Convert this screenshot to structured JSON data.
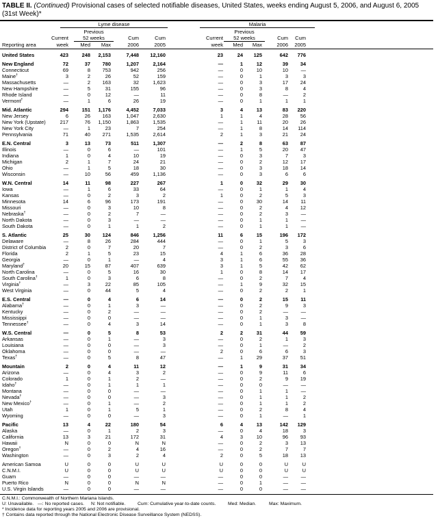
{
  "title": {
    "label": "TABLE II.",
    "continued": "(Continued)",
    "text": "Provisional cases of selected notifiable diseases, United States, weeks ending August 5, 2006, and August 6, 2005",
    "week": "(31st Week)*"
  },
  "header": {
    "reporting_area": "Reporting area",
    "diseases": [
      "Lyme disease",
      "Malaria"
    ],
    "previous": "Previous",
    "weeks52": "52 weeks",
    "current": "Current",
    "week": "week",
    "med": "Med",
    "max": "Max",
    "cum": "Cum",
    "y2006": "2006",
    "y2005": "2005"
  },
  "groups": [
    {
      "rows": [
        [
          "United States",
          "",
          true,
          "423",
          "248",
          "2,153",
          "7,448",
          "12,160",
          "23",
          "24",
          "125",
          "642",
          "776"
        ]
      ]
    },
    {
      "rows": [
        [
          "New England",
          "",
          true,
          "72",
          "37",
          "780",
          "1,207",
          "2,164",
          "—",
          "1",
          "12",
          "39",
          "34"
        ],
        [
          "Connecticut",
          "",
          false,
          "69",
          "8",
          "753",
          "942",
          "256",
          "—",
          "0",
          "10",
          "10",
          "—"
        ],
        [
          "Maine",
          "†",
          false,
          "3",
          "2",
          "26",
          "52",
          "159",
          "—",
          "0",
          "1",
          "3",
          "3"
        ],
        [
          "Massachusetts",
          "",
          false,
          "—",
          "2",
          "163",
          "32",
          "1,623",
          "—",
          "0",
          "3",
          "17",
          "24"
        ],
        [
          "New Hampshire",
          "",
          false,
          "—",
          "5",
          "31",
          "155",
          "96",
          "—",
          "0",
          "3",
          "8",
          "4"
        ],
        [
          "Rhode Island",
          "",
          false,
          "—",
          "0",
          "12",
          "—",
          "11",
          "—",
          "0",
          "8",
          "—",
          "2"
        ],
        [
          "Vermont",
          "†",
          false,
          "—",
          "1",
          "6",
          "26",
          "19",
          "—",
          "0",
          "1",
          "1",
          "1"
        ]
      ]
    },
    {
      "rows": [
        [
          "Mid. Atlantic",
          "",
          true,
          "294",
          "151",
          "1,176",
          "4,452",
          "7,033",
          "3",
          "4",
          "13",
          "83",
          "220"
        ],
        [
          "New Jersey",
          "",
          false,
          "6",
          "26",
          "163",
          "1,047",
          "2,630",
          "1",
          "1",
          "4",
          "28",
          "56"
        ],
        [
          "New York (Upstate)",
          "",
          false,
          "217",
          "76",
          "1,150",
          "1,863",
          "1,535",
          "—",
          "1",
          "11",
          "20",
          "26"
        ],
        [
          "New York City",
          "",
          false,
          "—",
          "1",
          "23",
          "7",
          "254",
          "—",
          "1",
          "8",
          "14",
          "114"
        ],
        [
          "Pennsylvania",
          "",
          false,
          "71",
          "40",
          "271",
          "1,535",
          "2,614",
          "2",
          "1",
          "3",
          "21",
          "24"
        ]
      ]
    },
    {
      "rows": [
        [
          "E.N. Central",
          "",
          true,
          "3",
          "13",
          "73",
          "511",
          "1,307",
          "—",
          "2",
          "8",
          "63",
          "87"
        ],
        [
          "Illinois",
          "",
          false,
          "—",
          "0",
          "6",
          "—",
          "101",
          "—",
          "1",
          "5",
          "20",
          "47"
        ],
        [
          "Indiana",
          "",
          false,
          "1",
          "0",
          "4",
          "10",
          "19",
          "—",
          "0",
          "3",
          "7",
          "3"
        ],
        [
          "Michigan",
          "",
          false,
          "2",
          "1",
          "7",
          "24",
          "21",
          "—",
          "0",
          "2",
          "12",
          "17"
        ],
        [
          "Ohio",
          "",
          false,
          "—",
          "1",
          "5",
          "18",
          "30",
          "—",
          "0",
          "3",
          "18",
          "14"
        ],
        [
          "Wisconsin",
          "",
          false,
          "—",
          "10",
          "56",
          "459",
          "1,136",
          "—",
          "0",
          "3",
          "6",
          "6"
        ]
      ]
    },
    {
      "rows": [
        [
          "W.N. Central",
          "",
          true,
          "14",
          "11",
          "98",
          "227",
          "267",
          "1",
          "0",
          "32",
          "29",
          "30"
        ],
        [
          "Iowa",
          "",
          false,
          "—",
          "1",
          "6",
          "33",
          "64",
          "—",
          "0",
          "1",
          "1",
          "4"
        ],
        [
          "Kansas",
          "",
          false,
          "—",
          "0",
          "2",
          "3",
          "2",
          "1",
          "0",
          "2",
          "5",
          "3"
        ],
        [
          "Minnesota",
          "",
          false,
          "14",
          "6",
          "96",
          "173",
          "191",
          "—",
          "0",
          "30",
          "14",
          "11"
        ],
        [
          "Missouri",
          "",
          false,
          "—",
          "0",
          "3",
          "10",
          "8",
          "—",
          "0",
          "2",
          "4",
          "12"
        ],
        [
          "Nebraska",
          "†",
          false,
          "—",
          "0",
          "2",
          "7",
          "—",
          "—",
          "0",
          "2",
          "3",
          "—"
        ],
        [
          "North Dakota",
          "",
          false,
          "—",
          "0",
          "3",
          "—",
          "—",
          "—",
          "0",
          "1",
          "1",
          "—"
        ],
        [
          "South Dakota",
          "",
          false,
          "—",
          "0",
          "1",
          "1",
          "2",
          "—",
          "0",
          "1",
          "1",
          "—"
        ]
      ]
    },
    {
      "rows": [
        [
          "S. Atlantic",
          "",
          true,
          "25",
          "30",
          "124",
          "846",
          "1,256",
          "11",
          "6",
          "15",
          "196",
          "172"
        ],
        [
          "Delaware",
          "",
          false,
          "—",
          "8",
          "26",
          "284",
          "444",
          "—",
          "0",
          "1",
          "5",
          "3"
        ],
        [
          "District of Columbia",
          "",
          false,
          "2",
          "0",
          "7",
          "20",
          "7",
          "—",
          "0",
          "2",
          "3",
          "6"
        ],
        [
          "Florida",
          "",
          false,
          "2",
          "1",
          "5",
          "23",
          "15",
          "4",
          "1",
          "6",
          "36",
          "28"
        ],
        [
          "Georgia",
          "",
          false,
          "—",
          "0",
          "1",
          "—",
          "4",
          "3",
          "1",
          "6",
          "55",
          "36"
        ],
        [
          "Maryland",
          "†",
          false,
          "20",
          "15",
          "87",
          "407",
          "639",
          "3",
          "1",
          "5",
          "42",
          "62"
        ],
        [
          "North Carolina",
          "",
          false,
          "—",
          "0",
          "5",
          "16",
          "30",
          "1",
          "0",
          "8",
          "14",
          "17"
        ],
        [
          "South Carolina",
          "†",
          false,
          "1",
          "0",
          "3",
          "6",
          "8",
          "—",
          "0",
          "2",
          "7",
          "4"
        ],
        [
          "Virginia",
          "†",
          false,
          "—",
          "3",
          "22",
          "85",
          "105",
          "—",
          "1",
          "9",
          "32",
          "15"
        ],
        [
          "West Virginia",
          "",
          false,
          "—",
          "0",
          "44",
          "5",
          "4",
          "—",
          "0",
          "2",
          "2",
          "1"
        ]
      ]
    },
    {
      "rows": [
        [
          "E.S. Central",
          "",
          true,
          "—",
          "0",
          "4",
          "6",
          "14",
          "—",
          "0",
          "2",
          "15",
          "11"
        ],
        [
          "Alabama",
          "†",
          false,
          "—",
          "0",
          "1",
          "3",
          "—",
          "—",
          "0",
          "2",
          "9",
          "3"
        ],
        [
          "Kentucky",
          "",
          false,
          "—",
          "0",
          "2",
          "—",
          "—",
          "—",
          "0",
          "2",
          "—",
          "—"
        ],
        [
          "Mississippi",
          "",
          false,
          "—",
          "0",
          "0",
          "—",
          "—",
          "—",
          "0",
          "1",
          "3",
          "—"
        ],
        [
          "Tennessee",
          "†",
          false,
          "—",
          "0",
          "4",
          "3",
          "14",
          "—",
          "0",
          "1",
          "3",
          "8"
        ]
      ]
    },
    {
      "rows": [
        [
          "W.S. Central",
          "",
          true,
          "—",
          "0",
          "5",
          "8",
          "53",
          "2",
          "2",
          "31",
          "44",
          "59"
        ],
        [
          "Arkansas",
          "",
          false,
          "—",
          "0",
          "1",
          "—",
          "3",
          "—",
          "0",
          "2",
          "1",
          "3"
        ],
        [
          "Louisiana",
          "",
          false,
          "—",
          "0",
          "0",
          "—",
          "3",
          "—",
          "0",
          "1",
          "—",
          "2"
        ],
        [
          "Oklahoma",
          "",
          false,
          "—",
          "0",
          "0",
          "—",
          "—",
          "2",
          "0",
          "6",
          "6",
          "3"
        ],
        [
          "Texas",
          "†",
          false,
          "—",
          "0",
          "5",
          "8",
          "47",
          "—",
          "1",
          "29",
          "37",
          "51"
        ]
      ]
    },
    {
      "rows": [
        [
          "Mountain",
          "",
          true,
          "2",
          "0",
          "4",
          "11",
          "12",
          "—",
          "1",
          "9",
          "31",
          "34"
        ],
        [
          "Arizona",
          "",
          false,
          "—",
          "0",
          "4",
          "3",
          "2",
          "—",
          "0",
          "9",
          "11",
          "6"
        ],
        [
          "Colorado",
          "",
          false,
          "1",
          "0",
          "1",
          "2",
          "—",
          "—",
          "0",
          "2",
          "9",
          "19"
        ],
        [
          "Idaho",
          "†",
          false,
          "—",
          "0",
          "1",
          "1",
          "1",
          "—",
          "0",
          "0",
          "—",
          "—"
        ],
        [
          "Montana",
          "",
          false,
          "—",
          "0",
          "0",
          "—",
          "—",
          "—",
          "0",
          "1",
          "1",
          "—"
        ],
        [
          "Nevada",
          "†",
          false,
          "—",
          "0",
          "0",
          "—",
          "3",
          "—",
          "0",
          "1",
          "1",
          "2"
        ],
        [
          "New Mexico",
          "†",
          false,
          "—",
          "0",
          "1",
          "—",
          "2",
          "—",
          "0",
          "1",
          "1",
          "2"
        ],
        [
          "Utah",
          "",
          false,
          "1",
          "0",
          "1",
          "5",
          "1",
          "—",
          "0",
          "2",
          "8",
          "4"
        ],
        [
          "Wyoming",
          "",
          false,
          "—",
          "0",
          "0",
          "—",
          "3",
          "—",
          "0",
          "1",
          "—",
          "1"
        ]
      ]
    },
    {
      "rows": [
        [
          "Pacific",
          "",
          true,
          "13",
          "4",
          "22",
          "180",
          "54",
          "6",
          "4",
          "13",
          "142",
          "129"
        ],
        [
          "Alaska",
          "",
          false,
          "—",
          "0",
          "1",
          "2",
          "3",
          "—",
          "0",
          "4",
          "18",
          "3"
        ],
        [
          "California",
          "",
          false,
          "13",
          "3",
          "21",
          "172",
          "31",
          "4",
          "3",
          "10",
          "96",
          "93"
        ],
        [
          "Hawaii",
          "",
          false,
          "N",
          "0",
          "0",
          "N",
          "N",
          "—",
          "0",
          "2",
          "3",
          "13"
        ],
        [
          "Oregon",
          "†",
          false,
          "—",
          "0",
          "2",
          "4",
          "16",
          "—",
          "0",
          "2",
          "7",
          "7"
        ],
        [
          "Washington",
          "",
          false,
          "—",
          "0",
          "3",
          "2",
          "4",
          "2",
          "0",
          "5",
          "18",
          "13"
        ]
      ]
    },
    {
      "rows": [
        [
          "American Samoa",
          "",
          false,
          "U",
          "0",
          "0",
          "U",
          "U",
          "U",
          "0",
          "0",
          "U",
          "U"
        ],
        [
          "C.N.M.I.",
          "",
          false,
          "U",
          "0",
          "0",
          "U",
          "U",
          "U",
          "0",
          "0",
          "U",
          "U"
        ],
        [
          "Guam",
          "",
          false,
          "—",
          "0",
          "0",
          "—",
          "—",
          "—",
          "0",
          "0",
          "—",
          "—"
        ],
        [
          "Puerto Rico",
          "",
          false,
          "N",
          "0",
          "0",
          "N",
          "N",
          "—",
          "0",
          "1",
          "—",
          "—"
        ],
        [
          "U.S. Virgin Islands",
          "",
          false,
          "—",
          "0",
          "0",
          "—",
          "—",
          "—",
          "0",
          "0",
          "—",
          "—"
        ]
      ]
    }
  ],
  "footnotes": {
    "cnmi": "C.N.M.I.: Commonwealth of Northern Mariana Islands.",
    "legend": [
      "U: Unavailable.",
      "—: No reported cases.",
      "N: Not notifiable.",
      "Cum: Cumulative year-to-date counts.",
      "Med: Median.",
      "Max: Maximum."
    ],
    "star": "* Incidence data for reporting years 2005 and 2006 are provisional.",
    "dagger": "† Contains data reported through the National Electronic Disease Surveillance System (NEDSS)."
  }
}
